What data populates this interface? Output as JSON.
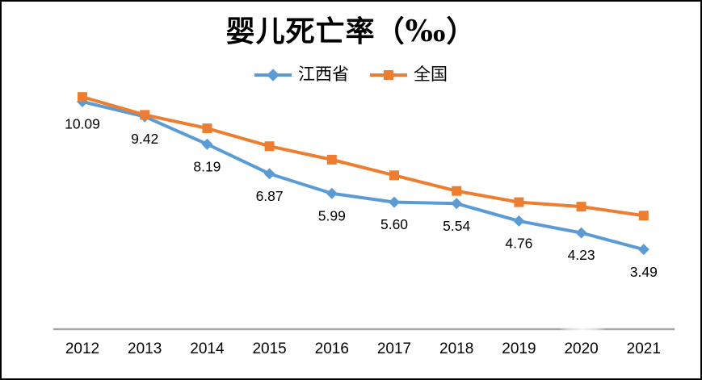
{
  "colors": {
    "jiangxi_blue": "#5B9BD5",
    "national_orange": "#ED7D31",
    "axis_gray": "#A6A6A6",
    "text_black": "#000000",
    "background": "#FFFFFF",
    "frame_border": "#000000"
  },
  "chart_data": {
    "type": "line",
    "title": "婴儿死亡率（‰）",
    "categories": [
      "2012",
      "2013",
      "2014",
      "2015",
      "2016",
      "2017",
      "2018",
      "2019",
      "2020",
      "2021"
    ],
    "series": [
      {
        "name": "江西省",
        "color": "#5B9BD5",
        "marker": "diamond",
        "values": [
          10.09,
          9.42,
          8.19,
          6.87,
          5.99,
          5.6,
          5.54,
          4.76,
          4.23,
          3.49
        ],
        "data_labels": [
          "10.09",
          "9.42",
          "8.19",
          "6.87",
          "5.99",
          "5.60",
          "5.54",
          "4.76",
          "4.23",
          "3.49"
        ]
      },
      {
        "name": "全国",
        "color": "#ED7D31",
        "marker": "square",
        "values": [
          10.3,
          9.5,
          8.9,
          8.1,
          7.5,
          6.8,
          6.1,
          5.6,
          5.4,
          5.0
        ],
        "data_labels": []
      }
    ],
    "xlabel": "",
    "ylabel": "",
    "ylim": [
      0,
      11.5
    ],
    "grid": false,
    "y_axis_visible": false,
    "x_axis_line": true,
    "legend_position": "top"
  }
}
